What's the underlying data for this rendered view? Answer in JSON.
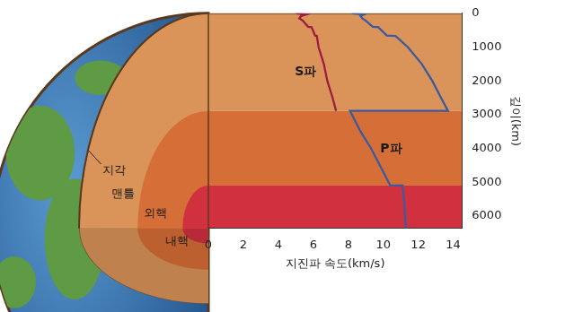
{
  "chart_data": {
    "type": "line",
    "x_label": "지진파 속도(km/s)",
    "y_label": "깊이(km)",
    "xlim": [
      0,
      14.5
    ],
    "xticks": [
      0,
      2,
      4,
      6,
      8,
      10,
      12,
      14
    ],
    "ylim": [
      0,
      6371
    ],
    "yticks": [
      0,
      1000,
      2000,
      3000,
      4000,
      5000,
      6000
    ],
    "grid": false,
    "series": [
      {
        "name": "S파",
        "color": "#9b1d3f",
        "x": [
          5.0,
          5.6,
          5.3,
          5.2,
          5.4,
          5.7,
          5.9,
          6.1,
          6.2,
          6.3,
          6.6,
          6.8,
          7.1,
          7.3
        ],
        "y": [
          0,
          35,
          80,
          150,
          220,
          400,
          410,
          660,
          670,
          1000,
          1500,
          2000,
          2500,
          2890
        ]
      },
      {
        "name": "P파",
        "color": "#3c5a9e",
        "x": [
          8.2,
          8.9,
          8.7,
          8.8,
          9.0,
          9.4,
          9.7,
          10.2,
          10.7,
          11.4,
          12.2,
          12.8,
          13.3,
          13.7,
          8.1,
          8.7,
          9.3,
          9.8,
          10.4,
          11.1,
          11.2,
          11.3
        ],
        "y": [
          0,
          35,
          80,
          150,
          220,
          400,
          410,
          660,
          670,
          1000,
          1500,
          2000,
          2500,
          2890,
          2890,
          3500,
          4000,
          4500,
          5100,
          5100,
          5600,
          6371
        ]
      }
    ],
    "layers": [
      {
        "name": "지각",
        "top": 0,
        "bottom": 35,
        "color": "#8a5a34"
      },
      {
        "name": "맨틀",
        "top": 35,
        "bottom": 2890,
        "color": "#da9459"
      },
      {
        "name": "외핵",
        "top": 2890,
        "bottom": 5100,
        "color": "#d66e37"
      },
      {
        "name": "내핵",
        "top": 5100,
        "bottom": 6371,
        "color": "#d1303f"
      }
    ]
  }
}
